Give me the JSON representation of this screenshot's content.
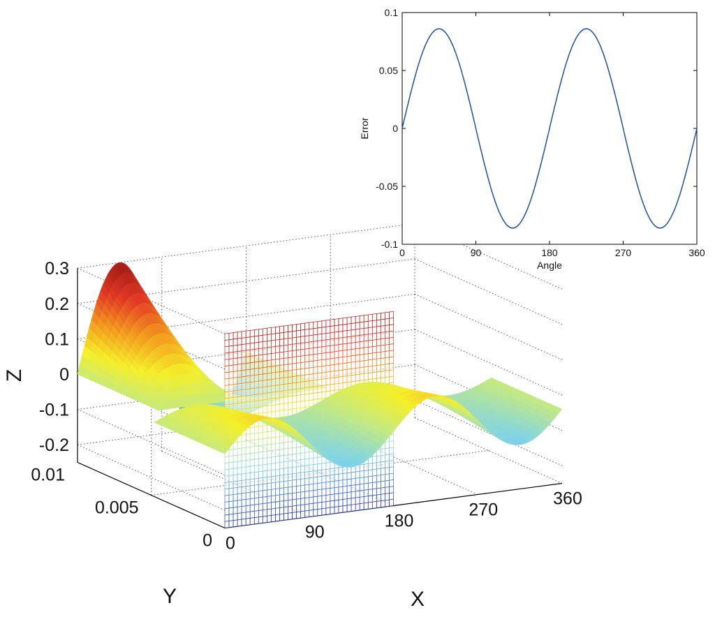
{
  "colors": {
    "inset_line": "#1f4e9c",
    "grid": "#555555",
    "background": "#ffffff",
    "colormap": [
      "#1f2f8f",
      "#3b73c8",
      "#7fd3e8",
      "#bfe88a",
      "#f4f02a",
      "#f39c1e",
      "#e23a25",
      "#a11a14"
    ]
  },
  "chart_data": [
    {
      "type": "surface3d",
      "xlabel": "X",
      "ylabel": "Y",
      "zlabel": "Z",
      "xlim": [
        0,
        360
      ],
      "ylim": [
        0,
        0.01
      ],
      "zlim": [
        -0.25,
        0.3
      ],
      "x_ticks": [
        "0",
        "90",
        "180",
        "270",
        "360"
      ],
      "y_ticks": [
        "0",
        "0.005",
        "0.01"
      ],
      "z_ticks": [
        "0.3",
        "0.2",
        "0.1",
        "0",
        "-0.1",
        "-0.2"
      ],
      "grid": true,
      "surfaces": [
        {
          "description_key": "back_wave",
          "x_at_y": 0.01,
          "z_peaks_at_x": [
            45,
            225
          ],
          "z_max": 0.3,
          "z_min": -0.22
        },
        {
          "description_key": "sheet",
          "y_value": 0.0,
          "z_range": [
            -0.25,
            0.3
          ]
        },
        {
          "description_key": "front_wave",
          "z_amplitude": 0.085
        }
      ]
    },
    {
      "type": "line",
      "xlabel": "Angle",
      "ylabel": "Error",
      "xlim": [
        0,
        360
      ],
      "ylim": [
        -0.1,
        0.1
      ],
      "x_ticks": [
        "0",
        "90",
        "180",
        "270",
        "360"
      ],
      "y_ticks": [
        "0.1",
        "0.05",
        "0",
        "-0.05",
        "-0.1"
      ],
      "series": [
        {
          "function": "0.086*sin(2*angle)",
          "x": [
            0,
            45,
            90,
            135,
            180,
            225,
            270,
            315,
            360
          ],
          "y": [
            0,
            0.086,
            0,
            -0.086,
            0,
            0.086,
            0,
            -0.086,
            0
          ]
        }
      ]
    }
  ]
}
